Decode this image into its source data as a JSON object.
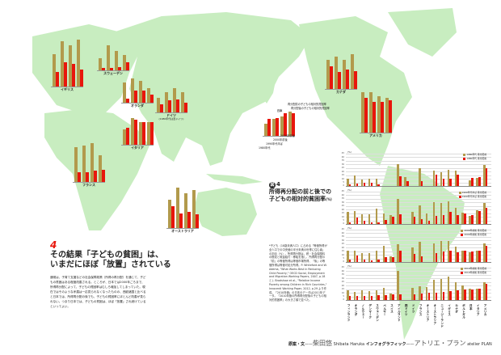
{
  "colors": {
    "before": "#b29a4c",
    "after": "#e8160c",
    "land": "#c8edc0",
    "accent": "#e8160c"
  },
  "section": {
    "number": "4",
    "title_line1": "その結果「子どもの貧困」は、",
    "title_line2": "いまだにほぼ「放置」されている",
    "body": "通常は、子育て支援などの社会保障政策（所得の再分配）を通じて、子どもの貧困はある程度改善される。ところが、日本では2000年ごろまで、所得再分配によって、子どもの貧困率はむしろ増加してしまっていた。現在ではそのような矛盾は一応見られなくなったものの、西欧諸国と比べると日本では、所得再分配の後でも、子どもの貧困率にほとんど改善が見られない。つまり日本では、子どもの貧困は、ほぼ「放置」され続けているといってよい。"
  },
  "figure": {
    "badge": "図",
    "number": "4",
    "title_line1": "所得再分配の前と後での",
    "title_line2": "子どもの相対的貧困率",
    "unit": "(%)",
    "note": "*子ども（18歳未満人口）に占める「等価所得が全人口での中央値の半分未満の世帯に住む者」の割合（%）。所得再分配は、税・社会保険料の徴収と現金給付・移転を指し、所得再分配の「前」の等価所得は等価市場所得、「後」の等価所得は等価可処分所得。P. Whiteford and W. Adema, \"What Works Best in Reducing Child Poverty,\" OECD Social, Employment and Migration Working Papers, 2007, p.18 と J. Bradshaw et al., \"Relative Income Poverty among Children in Rich Countries,\" Innocenti Working Paper, 2012, p.29 より作成。「2010年値」の日本のデータは2011年データ。「2010年値の所得再分配後の子どもの相対的貧困率」の大きさ順で並べた。"
  },
  "japan_legend": {
    "title": "日本",
    "before": "再分配前の子どもの相対的貧困率",
    "after": "再分配後の子どもの相対的貧困率",
    "periods": [
      "1980年代",
      "1990年代半ば",
      "2000年前後",
      "2010年前後"
    ]
  },
  "footer": {
    "role1": "原案・文",
    "name1": "柴田悠",
    "name1_en": "Shibata Haruka",
    "role2": "インフォグラフィック",
    "name2": "アトリエ・プラン",
    "name2_en": "atelier PLAN",
    "dash": "——"
  },
  "map_charts": [
    {
      "country": "イギリス",
      "label": "イギリス"
    },
    {
      "country": "スウェーデン",
      "label": "スウェーデン"
    },
    {
      "country": "オランダ",
      "label": "オランダ"
    },
    {
      "country": "ドイツ",
      "label": "ドイツ",
      "sub": "(1980年代は西ドイツ)"
    },
    {
      "country": "イタリア",
      "label": "イタリア"
    },
    {
      "country": "フランス",
      "label": "フランス"
    },
    {
      "country": "オーストラリア",
      "label": "オーストラリア"
    },
    {
      "country": "カナダ",
      "label": "カナダ"
    },
    {
      "country": "アメリカ",
      "label": "アメリカ"
    },
    {
      "country": "日本",
      "label": ""
    }
  ],
  "chart_data": {
    "type": "bar",
    "title": "所得再分配の前と後での子どもの相対的貧困率 (%)",
    "ylabel": "(%)",
    "ylim": [
      0,
      45
    ],
    "yticks": [
      0,
      5,
      10,
      15,
      20,
      25,
      30,
      35,
      40,
      45
    ],
    "grid": true,
    "legend_position": "top-right",
    "categories": [
      "フィンランド",
      "オランダ",
      "ノルウェー",
      "デンマーク",
      "スウェーデン",
      "ベルギー",
      "スイス",
      "アイルランド",
      "西ドイツ",
      "ドイツ",
      "フランス",
      "オーストリア",
      "オーストラリア",
      "ニュージーランド",
      "イギリス",
      "カナダ",
      "ポルトガル",
      "日本",
      "イタリア",
      "アメリカ"
    ],
    "panels": [
      {
        "period": "1980年代",
        "legend_before": "1980年代 再分配前",
        "legend_after": "1980年代 再分配後",
        "before": [
          10,
          15,
          9,
          10,
          10,
          null,
          null,
          30,
          12,
          null,
          25,
          null,
          21,
          19,
          23,
          21,
          null,
          8,
          11,
          29
        ],
        "after": [
          2,
          3,
          4,
          4,
          2,
          null,
          null,
          13,
          7,
          null,
          7,
          null,
          16,
          10,
          10,
          16,
          null,
          11,
          12,
          25
        ]
      },
      {
        "period": "1990年代半ば",
        "legend_before": "1990年代半ば 再分配前",
        "legend_after": "1990年代半ば 再分配後",
        "before": [
          17,
          18,
          13,
          13,
          21,
          15,
          12,
          35,
          null,
          17,
          26,
          15,
          30,
          29,
          32,
          23,
          16,
          11,
          19,
          29
        ],
        "after": [
          2,
          9,
          4,
          2,
          2,
          6,
          10,
          13,
          null,
          10,
          7,
          4,
          11,
          12,
          17,
          12,
          15,
          12,
          18,
          22
        ]
      },
      {
        "period": "2000年前後",
        "legend_before": "2000年前後 再分配前",
        "legend_after": "2000年前後 再分配後",
        "before": [
          16,
          16,
          12,
          12,
          16,
          22,
          8,
          25,
          null,
          20,
          28,
          null,
          26,
          29,
          29,
          21,
          16,
          13,
          16,
          26
        ],
        "after": [
          3,
          9,
          3,
          2,
          3,
          7,
          7,
          16,
          null,
          11,
          8,
          null,
          12,
          15,
          16,
          14,
          16,
          15,
          16,
          22
        ]
      },
      {
        "period": "2010年前後",
        "legend_before": "2010年前後 再分配前",
        "legend_after": "2010年前後 再分配後",
        "before": [
          14,
          11,
          13,
          12,
          13,
          17,
          9,
          41,
          null,
          17,
          19,
          18,
          28,
          29,
          33,
          25,
          20,
          16,
          16,
          25
        ],
        "after": [
          6,
          6,
          6,
          6,
          7,
          7,
          8,
          8,
          null,
          8,
          9,
          10,
          10,
          11,
          12,
          13,
          15,
          15,
          16,
          23
        ]
      }
    ]
  }
}
